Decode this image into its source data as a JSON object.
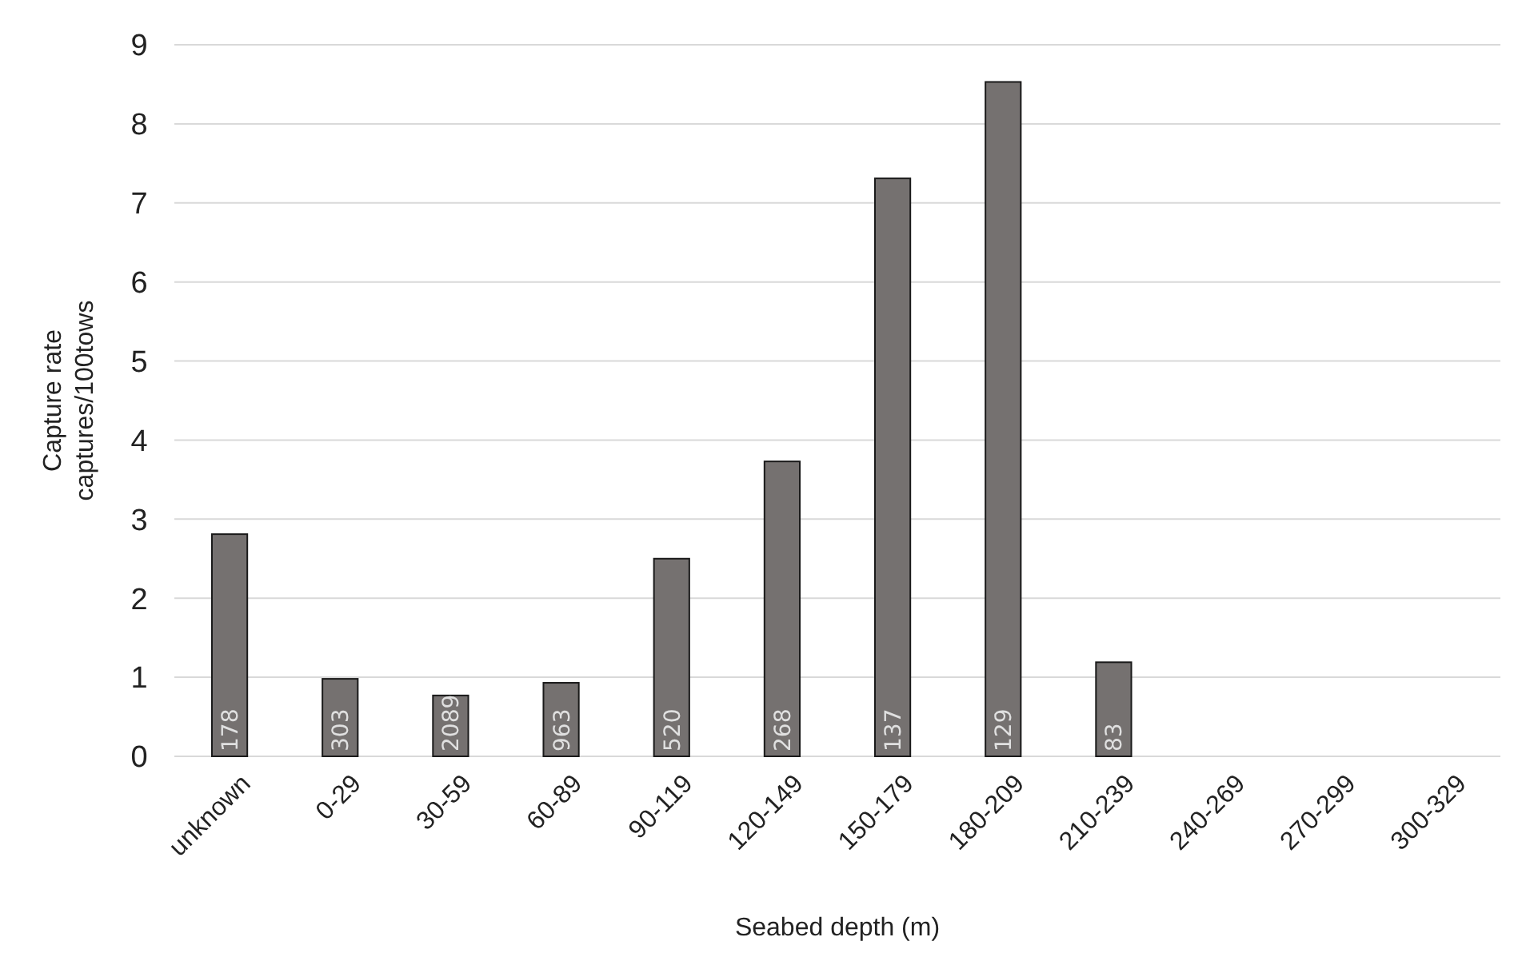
{
  "chart_data": {
    "type": "bar",
    "xlabel": "Seabed depth (m)",
    "ylabel": "Capture rate\ncaptures/100tows",
    "categories": [
      "unknown",
      "0-29",
      "30-59",
      "60-89",
      "90-119",
      "120-149",
      "150-179",
      "180-209",
      "210-239",
      "240-269",
      "270-299",
      "300-329"
    ],
    "values": [
      2.81,
      0.98,
      0.77,
      0.93,
      2.5,
      3.73,
      7.31,
      8.53,
      1.19,
      null,
      null,
      null
    ],
    "annotations": [
      {
        "text": "178",
        "x": "unknown",
        "y": 0
      },
      {
        "text": "303",
        "x": "0-29",
        "y": 0
      },
      {
        "text": "2089",
        "x": "30-59",
        "y": 0
      },
      {
        "text": "963",
        "x": "60-89",
        "y": 0
      },
      {
        "text": "520",
        "x": "90-119",
        "y": 0
      },
      {
        "text": "268",
        "x": "120-149",
        "y": 0
      },
      {
        "text": "137",
        "x": "150-179",
        "y": 0
      },
      {
        "text": "129",
        "x": "180-209",
        "y": 0
      },
      {
        "text": "83",
        "x": "210-239",
        "y": 0
      }
    ],
    "color": "#757170",
    "ylim": [
      0,
      9
    ],
    "yticks": [
      0,
      1,
      2,
      3,
      4,
      5,
      6,
      7,
      8,
      9
    ],
    "grid": "y"
  }
}
